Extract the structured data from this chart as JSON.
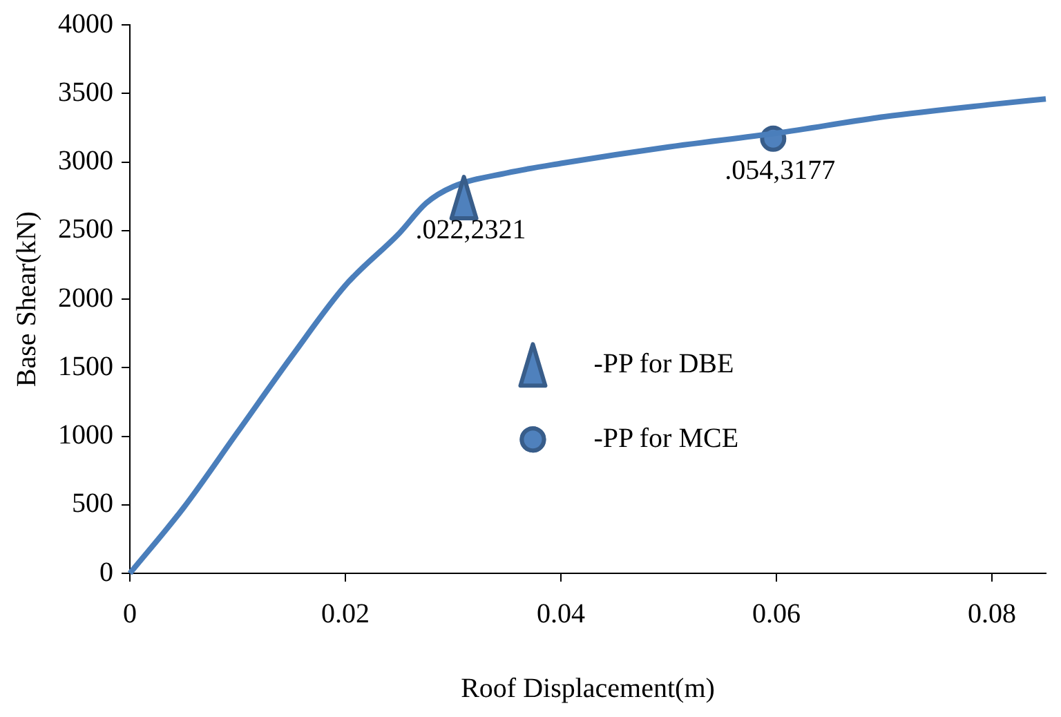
{
  "chart_data": {
    "type": "line",
    "xlabel": "Roof Displacement(m)",
    "ylabel": "Base Shear(kN)",
    "xlim": [
      0,
      0.085
    ],
    "xticks": [
      0,
      0.02,
      0.04,
      0.06,
      0.08
    ],
    "ylim": [
      0,
      4000
    ],
    "yticks": [
      0,
      500,
      1000,
      1500,
      2000,
      2500,
      3000,
      3500,
      4000
    ],
    "grid": false,
    "legend": "center",
    "marker": "none",
    "line_style": "solid",
    "series": [
      {
        "color": "#4a7ebb",
        "x": [
          0,
          0.005,
          0.01,
          0.015,
          0.02,
          0.025,
          0.0275,
          0.03,
          0.035,
          0.04,
          0.05,
          0.06,
          0.07,
          0.08,
          0.085
        ],
        "values": [
          0,
          480,
          1030,
          1580,
          2100,
          2480,
          2700,
          2820,
          2920,
          2990,
          3110,
          3210,
          3330,
          3420,
          3460
        ]
      },
      {
        "type": "scatter",
        "name": "-PP for DBE",
        "marker": "triangle",
        "color": "#4f81bd",
        "x": [
          0.031
        ],
        "values": [
          2740
        ]
      },
      {
        "type": "scatter",
        "name": "-PP for MCE",
        "marker": "circle",
        "color": "#4f81bd",
        "x": [
          0.0597
        ],
        "values": [
          3170
        ]
      }
    ],
    "annotations": [
      {
        "text": ".022,2321",
        "x": 0.031,
        "y": 2740
      },
      {
        "text": ".054,3177",
        "x": 0.0597,
        "y": 3170
      }
    ]
  }
}
